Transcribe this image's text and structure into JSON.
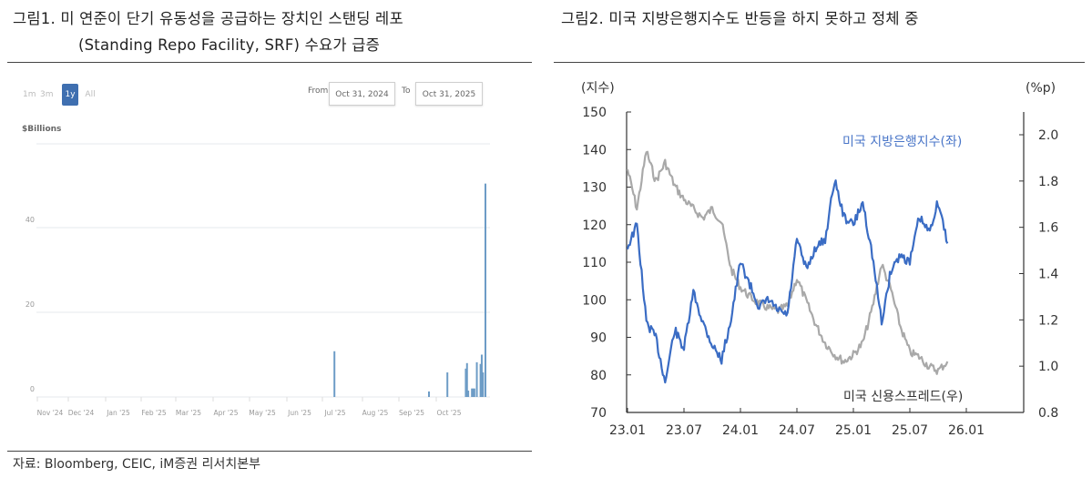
{
  "panel1": {
    "title_line1": "그림1.  미 연준이 단기 유동성을 공급하는 장치인 스탠딩 레포",
    "title_line2": "(Standing Repo Facility, SRF) 수요가 급증",
    "range_buttons": [
      {
        "label": "1m",
        "active": false
      },
      {
        "label": "3m",
        "active": false
      },
      {
        "label": "1y",
        "active": true
      },
      {
        "label": "All",
        "active": false
      }
    ],
    "from_label": "From",
    "from_value": "Oct 31, 2024",
    "to_label": "To",
    "to_value": "Oct 31, 2025",
    "unit": "$Billions"
  },
  "panel2": {
    "title": "그림2.  미국 지방은행지수도 반등을 하지 못하고 정체 중"
  },
  "source": "자료: Bloomberg, CEIC, iM증권 리서치본부",
  "colors": {
    "bar": "#6d9cc6",
    "bar_dark": "#4a7fb0",
    "grid": "#e6e8ee",
    "series_blue": "#3a6cc4",
    "series_gray": "#a9a9a9",
    "active_button": "#3f6fb0"
  },
  "chart_data": [
    {
      "type": "bar",
      "title": "Standing Repo Facility usage",
      "ylabel": "$Billions",
      "ylim": [
        0,
        55
      ],
      "yticks": [
        0,
        20,
        40
      ],
      "grid": true,
      "x_tick_labels": [
        "Nov '24",
        "Dec '24",
        "Jan '25",
        "Feb '25",
        "Mar '25",
        "Apr '25",
        "May '25",
        "Jun '25",
        "Jul '25",
        "Aug '25",
        "Sep '25",
        "Oct '25"
      ],
      "bars": [
        {
          "date": "2025-06-30",
          "value": 10.8
        },
        {
          "date": "2025-09-15",
          "value": 1.3
        },
        {
          "date": "2025-09-30",
          "value": 5.8
        },
        {
          "date": "2025-10-15",
          "value": 6.7
        },
        {
          "date": "2025-10-16",
          "value": 8.0
        },
        {
          "date": "2025-10-17",
          "value": 1.5
        },
        {
          "date": "2025-10-20",
          "value": 2.0
        },
        {
          "date": "2025-10-21",
          "value": 2.0
        },
        {
          "date": "2025-10-22",
          "value": 2.0
        },
        {
          "date": "2025-10-24",
          "value": 8.2
        },
        {
          "date": "2025-10-27",
          "value": 7.8
        },
        {
          "date": "2025-10-28",
          "value": 10.0
        },
        {
          "date": "2025-10-29",
          "value": 5.8
        },
        {
          "date": "2025-10-31",
          "value": 50.4
        }
      ]
    },
    {
      "type": "line",
      "title": "미국 지방은행지수 vs 미국 신용스프레드",
      "left_axis": {
        "label": "(지수)",
        "ylim": [
          70,
          150
        ],
        "ticks": [
          70,
          80,
          90,
          100,
          110,
          120,
          130,
          140,
          150
        ]
      },
      "right_axis": {
        "label": "(%p)",
        "ylim": [
          0.8,
          2.1
        ],
        "ticks": [
          0.8,
          1.0,
          1.2,
          1.4,
          1.6,
          1.8,
          2.0
        ]
      },
      "x_tick_labels": [
        "23.01",
        "23.07",
        "24.01",
        "24.07",
        "25.01",
        "25.07",
        "26.01"
      ],
      "series": [
        {
          "name": "미국 지방은행지수(좌)",
          "axis": "left",
          "color": "#3a6cc4",
          "x": [
            "23.01",
            "23.02",
            "23.03",
            "23.04",
            "23.05",
            "23.06",
            "23.07",
            "23.08",
            "23.09",
            "23.10",
            "23.11",
            "23.12",
            "24.01",
            "24.02",
            "24.03",
            "24.04",
            "24.05",
            "24.06",
            "24.07",
            "24.08",
            "24.09",
            "24.10",
            "24.11",
            "24.12",
            "25.01",
            "25.02",
            "25.03",
            "25.04",
            "25.05",
            "25.06",
            "25.07",
            "25.08",
            "25.09",
            "25.10",
            "25.11"
          ],
          "values": [
            114,
            120,
            94,
            90,
            78,
            92,
            87,
            102,
            94,
            88,
            84,
            95,
            110,
            104,
            98,
            100,
            97,
            96,
            116,
            108,
            114,
            116,
            132,
            122,
            120,
            126,
            112,
            94,
            108,
            112,
            110,
            122,
            118,
            126,
            115
          ]
        },
        {
          "name": "미국 신용스프레드(우)",
          "axis": "right",
          "color": "#a9a9a9",
          "x": [
            "23.01",
            "23.02",
            "23.03",
            "23.04",
            "23.05",
            "23.06",
            "23.07",
            "23.08",
            "23.09",
            "23.10",
            "23.11",
            "23.12",
            "24.01",
            "24.02",
            "24.03",
            "24.04",
            "24.05",
            "24.06",
            "24.07",
            "24.08",
            "24.09",
            "24.10",
            "24.11",
            "24.12",
            "25.01",
            "25.02",
            "25.03",
            "25.04",
            "25.05",
            "25.06",
            "25.07",
            "25.08",
            "25.09",
            "25.10",
            "25.11"
          ],
          "values": [
            1.85,
            1.68,
            1.93,
            1.8,
            1.88,
            1.78,
            1.72,
            1.68,
            1.64,
            1.68,
            1.62,
            1.42,
            1.34,
            1.3,
            1.27,
            1.25,
            1.24,
            1.26,
            1.38,
            1.28,
            1.18,
            1.1,
            1.05,
            1.02,
            1.05,
            1.1,
            1.25,
            1.44,
            1.33,
            1.17,
            1.06,
            1.04,
            1.0,
            0.98,
            1.02
          ]
        }
      ],
      "annotations": [
        "미국 지방은행지수(좌)",
        "미국 신용스프레드(우)"
      ]
    }
  ]
}
